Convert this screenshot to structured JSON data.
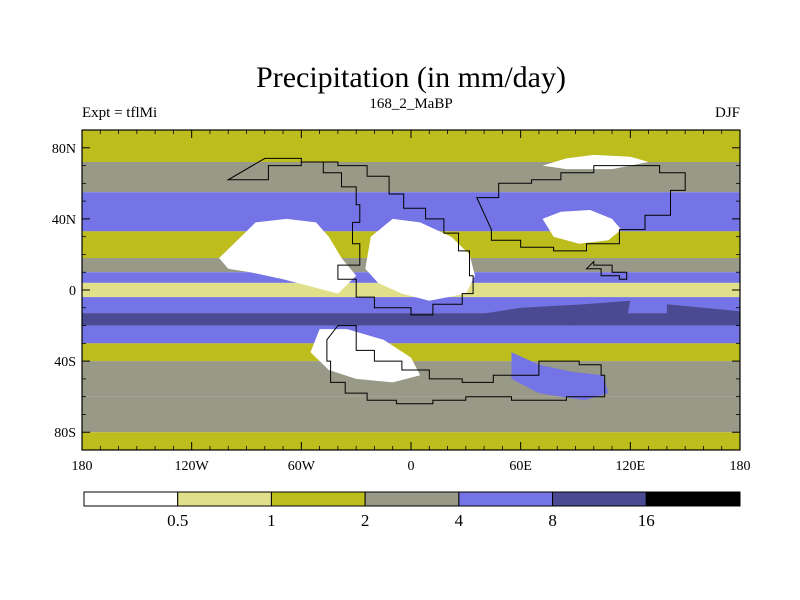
{
  "chart_data": {
    "type": "heatmap",
    "title": "Precipitation (in mm/day)",
    "subtitle_left": "Expt = tflMi",
    "subtitle_center": "168_2_MaBP",
    "subtitle_right": "DJF",
    "xlim": [
      -180,
      180
    ],
    "ylim": [
      -90,
      90
    ],
    "x_ticks": [
      {
        "value": -180,
        "label": "180"
      },
      {
        "value": -120,
        "label": "120W"
      },
      {
        "value": -60,
        "label": "60W"
      },
      {
        "value": 0,
        "label": "0"
      },
      {
        "value": 60,
        "label": "60E"
      },
      {
        "value": 120,
        "label": "120E"
      },
      {
        "value": 180,
        "label": "180"
      }
    ],
    "y_ticks": [
      {
        "value": 80,
        "label": "80N"
      },
      {
        "value": 40,
        "label": "40N"
      },
      {
        "value": 0,
        "label": "0"
      },
      {
        "value": -40,
        "label": "40S"
      },
      {
        "value": -80,
        "label": "80S"
      }
    ],
    "levels": [
      0.5,
      1,
      2,
      4,
      8,
      16
    ],
    "level_labels": [
      "0.5",
      "1",
      "2",
      "4",
      "8",
      "16"
    ],
    "colors": [
      "#ffffff",
      "#e0e08a",
      "#bdbd1e",
      "#999988",
      "#7474e6",
      "#4a4a92",
      "#000000"
    ],
    "zonal_bands": [
      {
        "lat": [
          72,
          90
        ],
        "class": 2
      },
      {
        "lat": [
          55,
          72
        ],
        "class": 3
      },
      {
        "lat": [
          33,
          55
        ],
        "class": 4
      },
      {
        "lat": [
          18,
          33
        ],
        "class": 2
      },
      {
        "lat": [
          10,
          18
        ],
        "class": 3
      },
      {
        "lat": [
          4,
          10
        ],
        "class": 4
      },
      {
        "lat": [
          -4,
          4
        ],
        "class": 1
      },
      {
        "lat": [
          -13,
          -4
        ],
        "class": 4
      },
      {
        "lat": [
          -20,
          -13
        ],
        "class": 5
      },
      {
        "lat": [
          -30,
          -20
        ],
        "class": 4
      },
      {
        "lat": [
          -40,
          -30
        ],
        "class": 2
      },
      {
        "lat": [
          -60,
          -40
        ],
        "class": 3
      },
      {
        "lat": [
          -80,
          -60
        ],
        "class": 3
      },
      {
        "lat": [
          -90,
          -80
        ],
        "class": 2
      }
    ],
    "regions": [
      {
        "name": "north-america-desert",
        "class": 0,
        "points": [
          [
            -105,
            18
          ],
          [
            -95,
            28
          ],
          [
            -85,
            38
          ],
          [
            -68,
            40
          ],
          [
            -52,
            38
          ],
          [
            -45,
            30
          ],
          [
            -38,
            18
          ],
          [
            -30,
            8
          ],
          [
            -40,
            -2
          ],
          [
            -55,
            2
          ],
          [
            -70,
            6
          ],
          [
            -88,
            10
          ],
          [
            -100,
            12
          ]
        ]
      },
      {
        "name": "africa-south-america-desert",
        "class": 0,
        "points": [
          [
            -22,
            30
          ],
          [
            -10,
            40
          ],
          [
            5,
            38
          ],
          [
            22,
            30
          ],
          [
            32,
            20
          ],
          [
            35,
            8
          ],
          [
            30,
            -2
          ],
          [
            10,
            -6
          ],
          [
            -5,
            -2
          ],
          [
            -18,
            4
          ],
          [
            -25,
            12
          ]
        ]
      },
      {
        "name": "southern-desert",
        "class": 0,
        "points": [
          [
            -50,
            -22
          ],
          [
            -35,
            -22
          ],
          [
            -15,
            -28
          ],
          [
            0,
            -38
          ],
          [
            5,
            -48
          ],
          [
            -10,
            -52
          ],
          [
            -30,
            -50
          ],
          [
            -45,
            -45
          ],
          [
            -55,
            -35
          ]
        ]
      },
      {
        "name": "asia-desert",
        "class": 0,
        "points": [
          [
            72,
            40
          ],
          [
            82,
            44
          ],
          [
            98,
            45
          ],
          [
            110,
            40
          ],
          [
            115,
            34
          ],
          [
            108,
            28
          ],
          [
            92,
            26
          ],
          [
            78,
            30
          ]
        ]
      },
      {
        "name": "arctic-dry",
        "class": 0,
        "points": [
          [
            72,
            70
          ],
          [
            85,
            74
          ],
          [
            100,
            76
          ],
          [
            120,
            75
          ],
          [
            130,
            72
          ],
          [
            110,
            68
          ],
          [
            85,
            68
          ]
        ]
      },
      {
        "name": "gondwana-wet",
        "class": 4,
        "points": [
          [
            55,
            -35
          ],
          [
            70,
            -42
          ],
          [
            88,
            -46
          ],
          [
            105,
            -48
          ],
          [
            108,
            -58
          ],
          [
            95,
            -62
          ],
          [
            70,
            -58
          ],
          [
            55,
            -50
          ]
        ]
      },
      {
        "name": "pacific-wet",
        "class": 5,
        "points": [
          [
            140,
            -8
          ],
          [
            160,
            -10
          ],
          [
            180,
            -12
          ],
          [
            180,
            -20
          ],
          [
            160,
            -18
          ],
          [
            140,
            -15
          ]
        ]
      },
      {
        "name": "tethys-wet",
        "class": 5,
        "points": [
          [
            35,
            -14
          ],
          [
            60,
            -10
          ],
          [
            95,
            -8
          ],
          [
            120,
            -6
          ],
          [
            118,
            -16
          ],
          [
            90,
            -20
          ],
          [
            55,
            -18
          ]
        ]
      },
      {
        "name": "boreal-wet",
        "class": 4,
        "points": [
          [
            20,
            50
          ],
          [
            40,
            52
          ],
          [
            60,
            46
          ],
          [
            50,
            40
          ],
          [
            30,
            42
          ]
        ]
      }
    ],
    "colorbar_position": "bottom"
  }
}
